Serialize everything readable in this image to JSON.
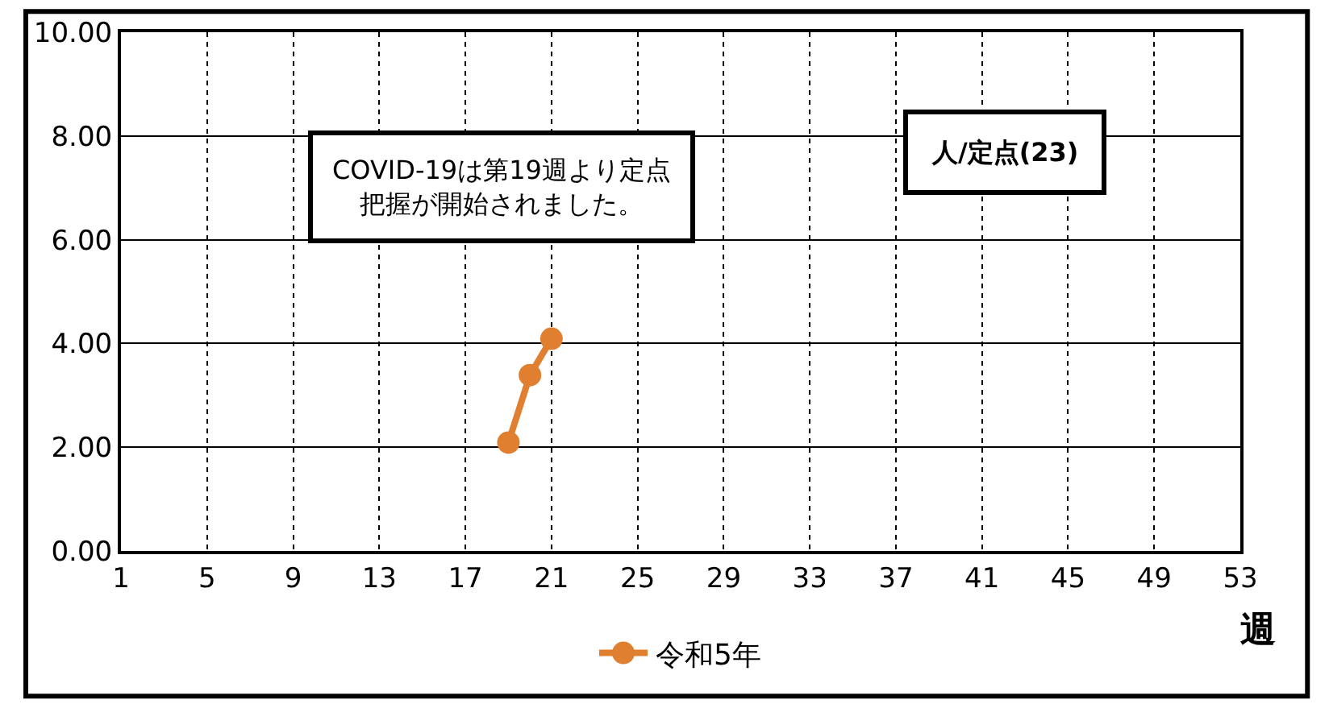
{
  "chart_data": {
    "type": "line",
    "xlabel": "週",
    "x": [
      19,
      20,
      21
    ],
    "series": [
      {
        "name": "令和5年",
        "color": "#e07f30",
        "values": [
          2.09,
          3.39,
          4.09
        ]
      }
    ],
    "xlim": [
      1,
      53
    ],
    "xticks": [
      1,
      5,
      9,
      13,
      17,
      21,
      25,
      29,
      33,
      37,
      41,
      45,
      49,
      53
    ],
    "ylim": [
      0,
      10
    ],
    "yticks": [
      {
        "value": 0,
        "label": "0.00"
      },
      {
        "value": 2,
        "label": "2.00"
      },
      {
        "value": 4,
        "label": "4.00"
      },
      {
        "value": 6,
        "label": "6.00"
      },
      {
        "value": 8,
        "label": "8.00"
      },
      {
        "value": 10,
        "label": "10.00"
      }
    ],
    "grid": true,
    "legend": "bottom",
    "marker": "circle",
    "line_style": "solid",
    "annotations": [
      "COVID-19は第19週より定点把握が開始されました。",
      "人/定点(23)"
    ]
  }
}
